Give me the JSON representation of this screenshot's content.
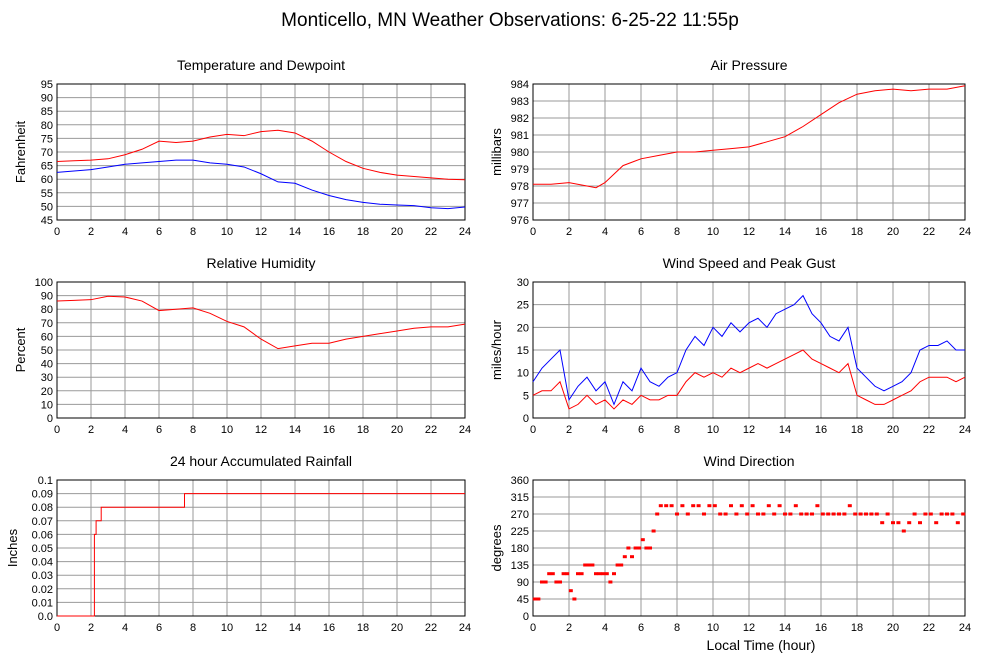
{
  "title": "Monticello, MN Weather Observations: 6-25-22 11:55p",
  "x_axis_label": "Local Time (hour)",
  "colors": {
    "red_series": "#ff0000",
    "blue_series": "#0000ff",
    "grid": "#9a9a9a",
    "frame": "#000000"
  },
  "chart_data": [
    {
      "type": "line",
      "title": "Temperature and Dewpoint",
      "ylabel": "Fahrenheit",
      "xlabel": "",
      "xlim": [
        0,
        24
      ],
      "ylim": [
        45,
        95
      ],
      "x_ticks": [
        "0",
        "2",
        "4",
        "6",
        "8",
        "10",
        "12",
        "14",
        "16",
        "18",
        "20",
        "22",
        "24"
      ],
      "y_ticks": [
        "45",
        "50",
        "55",
        "60",
        "65",
        "70",
        "75",
        "80",
        "85",
        "90",
        "95"
      ],
      "grid": true,
      "series": [
        {
          "color": "#ff0000",
          "x": [
            0,
            1,
            2,
            3,
            4,
            5,
            6,
            7,
            8,
            9,
            10,
            11,
            12,
            13,
            14,
            15,
            16,
            17,
            18,
            19,
            20,
            21,
            22,
            23,
            24
          ],
          "y": [
            66.5,
            66.8,
            67,
            67.5,
            69,
            71,
            74,
            73.5,
            74,
            75.5,
            76.5,
            76,
            77.5,
            78,
            77,
            74,
            70,
            66.5,
            64,
            62.5,
            61.5,
            61,
            60.5,
            60,
            59.8
          ]
        },
        {
          "color": "#0000ff",
          "x": [
            0,
            1,
            2,
            3,
            4,
            5,
            6,
            7,
            8,
            9,
            10,
            11,
            12,
            13,
            14,
            15,
            16,
            17,
            18,
            19,
            20,
            21,
            22,
            23,
            24
          ],
          "y": [
            62.5,
            63,
            63.5,
            64.5,
            65.5,
            66,
            66.5,
            67,
            67,
            66,
            65.5,
            64.5,
            62,
            59,
            58.5,
            56,
            54,
            52.5,
            51.5,
            50.8,
            50.5,
            50.3,
            49.5,
            49.2,
            49.8
          ]
        }
      ]
    },
    {
      "type": "line",
      "title": "Air Pressure",
      "ylabel": "millibars",
      "xlabel": "",
      "xlim": [
        0,
        24
      ],
      "ylim": [
        976,
        984
      ],
      "x_ticks": [
        "0",
        "2",
        "4",
        "6",
        "8",
        "10",
        "12",
        "14",
        "16",
        "18",
        "20",
        "22",
        "24"
      ],
      "y_ticks": [
        "976",
        "977",
        "978",
        "979",
        "980",
        "981",
        "982",
        "983",
        "984"
      ],
      "grid": true,
      "series": [
        {
          "color": "#ff0000",
          "x": [
            0,
            1,
            2,
            3,
            3.5,
            4,
            5,
            6,
            7,
            8,
            9,
            10,
            11,
            12,
            13,
            14,
            15,
            16,
            17,
            18,
            19,
            20,
            21,
            22,
            23,
            24
          ],
          "y": [
            978.1,
            978.1,
            978.2,
            978,
            977.9,
            978.2,
            979.2,
            979.6,
            979.8,
            980,
            980,
            980.1,
            980.2,
            980.3,
            980.6,
            980.9,
            981.5,
            982.2,
            982.9,
            983.4,
            983.6,
            983.7,
            983.6,
            983.7,
            983.7,
            983.9
          ]
        }
      ]
    },
    {
      "type": "line",
      "title": "Relative Humidity",
      "ylabel": "Percent",
      "xlabel": "",
      "xlim": [
        0,
        24
      ],
      "ylim": [
        0,
        100
      ],
      "x_ticks": [
        "0",
        "2",
        "4",
        "6",
        "8",
        "10",
        "12",
        "14",
        "16",
        "18",
        "20",
        "22",
        "24"
      ],
      "y_ticks": [
        "0",
        "10",
        "20",
        "30",
        "40",
        "50",
        "60",
        "70",
        "80",
        "90",
        "100"
      ],
      "grid": true,
      "series": [
        {
          "color": "#ff0000",
          "x": [
            0,
            1,
            2,
            3,
            4,
            5,
            6,
            7,
            8,
            9,
            10,
            11,
            12,
            13,
            14,
            15,
            16,
            17,
            18,
            19,
            20,
            21,
            22,
            23,
            24
          ],
          "y": [
            86,
            86.5,
            87,
            89.5,
            89,
            86,
            79,
            80,
            81,
            77,
            71,
            67,
            58,
            51,
            53,
            55,
            55,
            58,
            60,
            62,
            64,
            66,
            67,
            67,
            69
          ]
        }
      ]
    },
    {
      "type": "line",
      "title": "Wind Speed and Peak Gust",
      "ylabel": "miles/hour",
      "xlabel": "",
      "xlim": [
        0,
        24
      ],
      "ylim": [
        0,
        30
      ],
      "x_ticks": [
        "0",
        "2",
        "4",
        "6",
        "8",
        "10",
        "12",
        "14",
        "16",
        "18",
        "20",
        "22",
        "24"
      ],
      "y_ticks": [
        "0",
        "5",
        "10",
        "15",
        "20",
        "25",
        "30"
      ],
      "grid": true,
      "series": [
        {
          "color": "#ff0000",
          "x": [
            0,
            0.5,
            1,
            1.5,
            2,
            2.5,
            3,
            3.5,
            4,
            4.5,
            5,
            5.5,
            6,
            6.5,
            7,
            7.5,
            8,
            8.5,
            9,
            9.5,
            10,
            10.5,
            11,
            11.5,
            12,
            12.5,
            13,
            13.5,
            14,
            14.5,
            15,
            15.5,
            16,
            16.5,
            17,
            17.5,
            18,
            18.5,
            19,
            19.5,
            20,
            20.5,
            21,
            21.5,
            22,
            22.5,
            23,
            23.5,
            24
          ],
          "y": [
            5,
            6,
            6,
            8,
            2,
            3,
            5,
            3,
            4,
            2,
            4,
            3,
            5,
            4,
            4,
            5,
            5,
            8,
            10,
            9,
            10,
            9,
            11,
            10,
            11,
            12,
            11,
            12,
            13,
            14,
            15,
            13,
            12,
            11,
            10,
            12,
            5,
            4,
            3,
            3,
            4,
            5,
            6,
            8,
            9,
            9,
            9,
            8,
            9
          ]
        },
        {
          "color": "#0000ff",
          "x": [
            0,
            0.5,
            1,
            1.5,
            2,
            2.5,
            3,
            3.5,
            4,
            4.5,
            5,
            5.5,
            6,
            6.5,
            7,
            7.5,
            8,
            8.5,
            9,
            9.5,
            10,
            10.5,
            11,
            11.5,
            12,
            12.5,
            13,
            13.5,
            14,
            14.5,
            15,
            15.5,
            16,
            16.5,
            17,
            17.5,
            18,
            18.5,
            19,
            19.5,
            20,
            20.5,
            21,
            21.5,
            22,
            22.5,
            23,
            23.5,
            24
          ],
          "y": [
            8,
            11,
            13,
            15,
            4,
            7,
            9,
            6,
            8,
            3,
            8,
            6,
            11,
            8,
            7,
            9,
            10,
            15,
            18,
            16,
            20,
            18,
            21,
            19,
            21,
            22,
            20,
            23,
            24,
            25,
            27,
            23,
            21,
            18,
            17,
            20,
            11,
            9,
            7,
            6,
            7,
            8,
            10,
            15,
            16,
            16,
            17,
            15,
            15
          ]
        }
      ]
    },
    {
      "type": "line",
      "title": "24 hour Accumulated Rainfall",
      "ylabel": "Inches",
      "xlabel": "",
      "xlim": [
        0,
        24
      ],
      "ylim": [
        0,
        0.1
      ],
      "x_ticks": [
        "0",
        "2",
        "4",
        "6",
        "8",
        "10",
        "12",
        "14",
        "16",
        "18",
        "20",
        "22",
        "24"
      ],
      "y_ticks": [
        "0.0",
        "0.01",
        "0.02",
        "0.03",
        "0.04",
        "0.05",
        "0.06",
        "0.07",
        "0.08",
        "0.09",
        "0.1"
      ],
      "grid": true,
      "series": [
        {
          "color": "#ff0000",
          "step": true,
          "x": [
            0,
            1.9,
            2.2,
            2.3,
            2.5,
            2.6,
            7.4,
            7.5,
            24
          ],
          "y": [
            0,
            0,
            0.06,
            0.07,
            0.07,
            0.08,
            0.08,
            0.09,
            0.09
          ]
        }
      ]
    },
    {
      "type": "scatter",
      "title": "Wind Direction",
      "ylabel": "degrees",
      "xlabel": "Local Time (hour)",
      "xlim": [
        0,
        24
      ],
      "ylim": [
        0,
        360
      ],
      "x_ticks": [
        "0",
        "2",
        "4",
        "6",
        "8",
        "10",
        "12",
        "14",
        "16",
        "18",
        "20",
        "22",
        "24"
      ],
      "y_ticks": [
        "0",
        "45",
        "90",
        "135",
        "180",
        "225",
        "270",
        "315",
        "360"
      ],
      "grid": true,
      "series": [
        {
          "color": "#ff0000",
          "x": [
            0.1,
            0.3,
            0.5,
            0.7,
            0.9,
            1.1,
            1.3,
            1.5,
            1.7,
            1.9,
            2.1,
            2.3,
            2.5,
            2.7,
            2.9,
            3.1,
            3.3,
            3.5,
            3.7,
            3.9,
            4.1,
            4.3,
            4.5,
            4.7,
            4.9,
            5.1,
            5.3,
            5.5,
            5.7,
            5.9,
            6.1,
            6.3,
            6.5,
            6.7,
            6.9,
            7.1,
            7.4,
            7.7,
            8.0,
            8.3,
            8.6,
            8.9,
            9.2,
            9.5,
            9.8,
            10.1,
            10.4,
            10.7,
            11.0,
            11.3,
            11.6,
            11.9,
            12.2,
            12.5,
            12.8,
            13.1,
            13.4,
            13.7,
            14.0,
            14.3,
            14.6,
            14.9,
            15.2,
            15.5,
            15.8,
            16.1,
            16.4,
            16.7,
            17.0,
            17.3,
            17.6,
            17.9,
            18.2,
            18.5,
            18.8,
            19.1,
            19.4,
            19.7,
            20.0,
            20.3,
            20.6,
            20.9,
            21.2,
            21.5,
            21.8,
            22.1,
            22.4,
            22.7,
            23.0,
            23.3,
            23.6,
            23.9
          ],
          "y": [
            45,
            45,
            90,
            90,
            112,
            112,
            90,
            90,
            112,
            112,
            67,
            45,
            112,
            112,
            135,
            135,
            135,
            112,
            112,
            112,
            112,
            90,
            112,
            135,
            135,
            157,
            180,
            157,
            180,
            180,
            202,
            180,
            180,
            225,
            270,
            292,
            292,
            292,
            270,
            292,
            270,
            292,
            292,
            270,
            292,
            292,
            270,
            270,
            292,
            270,
            292,
            270,
            292,
            270,
            270,
            292,
            270,
            292,
            270,
            270,
            292,
            270,
            270,
            270,
            292,
            270,
            270,
            270,
            270,
            270,
            292,
            270,
            270,
            270,
            270,
            270,
            247,
            270,
            247,
            247,
            225,
            247,
            270,
            247,
            270,
            270,
            247,
            270,
            270,
            270,
            247,
            270
          ]
        }
      ]
    }
  ]
}
